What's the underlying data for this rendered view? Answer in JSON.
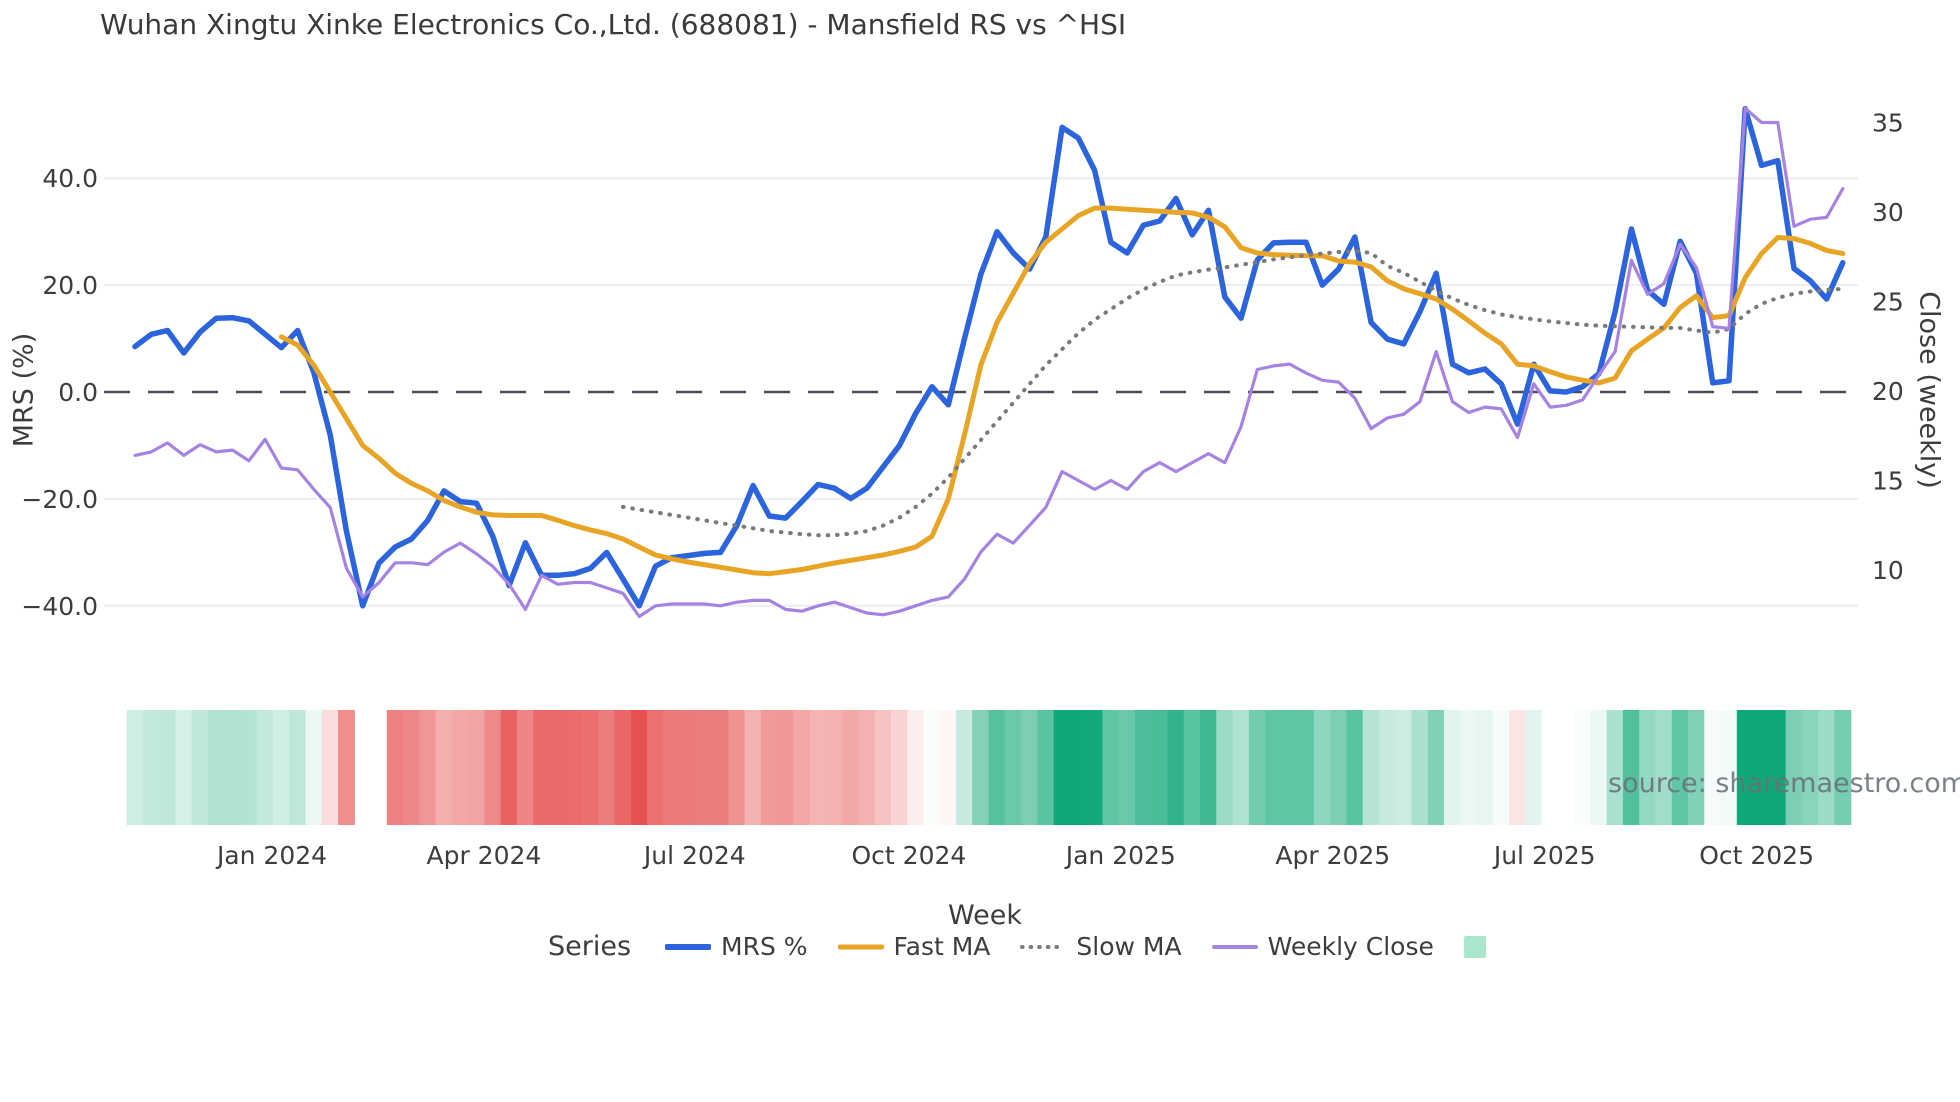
{
  "title": "Wuhan Xingtu Xinke Electronics Co.,Ltd. (688081) - Mansfield RS vs ^HSI",
  "watermark": "source: sharemaestro.com",
  "chart_data": {
    "type": "line",
    "x_unit": "week",
    "n_weeks": 106,
    "grid": true,
    "x_axis": {
      "title": "Week",
      "ticks": [
        {
          "label": "Jan 2024",
          "week": 8.42
        },
        {
          "label": "Apr 2024",
          "week": 21.45
        },
        {
          "label": "Jul 2024",
          "week": 34.42
        },
        {
          "label": "Oct 2024",
          "week": 47.58
        },
        {
          "label": "Jan 2025",
          "week": 60.61
        },
        {
          "label": "Apr 2025",
          "week": 73.64
        },
        {
          "label": "Jul 2025",
          "week": 86.67
        },
        {
          "label": "Oct 2025",
          "week": 99.7
        }
      ]
    },
    "left_axis": {
      "title": "MRS (%)",
      "range": [
        -44,
        62
      ],
      "zero_line": 0,
      "ticks": [
        {
          "label": "40.0",
          "value": 40
        },
        {
          "label": "20.0",
          "value": 20
        },
        {
          "label": "0.0",
          "value": 0
        },
        {
          "label": "−20.0",
          "value": -20
        },
        {
          "label": "−40.0",
          "value": -40
        }
      ]
    },
    "right_axis": {
      "title": "Close (weekly)",
      "range": [
        7,
        38.5
      ],
      "ticks": [
        {
          "label": "35",
          "value": 35
        },
        {
          "label": "30",
          "value": 30
        },
        {
          "label": "25",
          "value": 25
        },
        {
          "label": "20",
          "value": 20
        },
        {
          "label": "15",
          "value": 15
        },
        {
          "label": "10",
          "value": 10
        }
      ]
    },
    "legend": {
      "title": "Series",
      "items": [
        {
          "label": "MRS %",
          "type": "line",
          "color": "#2b64dd",
          "thick": 6
        },
        {
          "label": "Fast MA",
          "type": "line",
          "color": "#e8a425",
          "thick": 5
        },
        {
          "label": "Slow MA",
          "type": "dotted",
          "color": "#7a7a7a",
          "thick": 4
        },
        {
          "label": "Weekly Close",
          "type": "line",
          "color": "#a783e1",
          "thick": 4
        },
        {
          "label": "",
          "type": "square",
          "color": "#a9e6cc",
          "thick": 0
        }
      ]
    },
    "heat_strip": {
      "based_on": "MRS %",
      "positive_color": "#10a878",
      "negative_color": "#e54848",
      "max_abs": 42,
      "gap_weeks": [
        14,
        15
      ]
    },
    "series": [
      {
        "name": "MRS %",
        "axis": "left",
        "color": "#2b64dd",
        "style": "solid",
        "width": 5.5,
        "values": [
          8.5,
          10.8,
          11.5,
          7.3,
          11.2,
          13.8,
          13.9,
          13.3,
          10.8,
          8.3,
          11.5,
          3.6,
          -8.0,
          -26.0,
          -40.0,
          -32.0,
          -29.0,
          -27.5,
          -24.0,
          -18.5,
          -20.5,
          -20.8,
          -27.0,
          -36.2,
          -28.2,
          -34.3,
          -34.3,
          -34.0,
          -33.0,
          -30.0,
          -35.0,
          -40.0,
          -32.6,
          -31.0,
          -30.6,
          -30.2,
          -30.0,
          -25.0,
          -17.5,
          -23.2,
          -23.6,
          -20.5,
          -17.3,
          -18.0,
          -19.9,
          -18.0,
          -14.0,
          -10.0,
          -4.0,
          1.0,
          -2.4,
          10.0,
          22.0,
          30.0,
          26.0,
          23.0,
          29.0,
          49.5,
          47.5,
          41.5,
          28.0,
          26.0,
          31.2,
          32.0,
          36.2,
          29.4,
          34.0,
          17.8,
          13.8,
          24.7,
          27.9,
          28.0,
          28.0,
          20.0,
          23.0,
          29.0,
          13.0,
          9.9,
          9.0,
          15.0,
          22.2,
          5.2,
          3.6,
          4.3,
          1.5,
          -6.0,
          5.2,
          0.2,
          0.0,
          1.0,
          3.4,
          15.0,
          30.5,
          19.0,
          16.4,
          28.2,
          22.2,
          1.7,
          2.1,
          53.0,
          42.4,
          43.3,
          23.1,
          20.8,
          17.4,
          24.2
        ]
      },
      {
        "name": "Fast MA",
        "axis": "left",
        "color": "#e8a425",
        "style": "solid",
        "width": 5,
        "values": [
          null,
          null,
          null,
          null,
          null,
          null,
          null,
          null,
          null,
          10.3,
          8.8,
          5.0,
          0.0,
          -5.0,
          -10.0,
          -12.4,
          -15.2,
          -17.1,
          -18.5,
          -20.3,
          -21.5,
          -22.5,
          -23.0,
          -23.1,
          -23.1,
          -23.1,
          -24.0,
          -25.0,
          -25.8,
          -26.5,
          -27.5,
          -29.0,
          -30.5,
          -31.2,
          -31.8,
          -32.3,
          -32.8,
          -33.3,
          -33.8,
          -34.0,
          -33.6,
          -33.2,
          -32.6,
          -32.0,
          -31.5,
          -31.0,
          -30.5,
          -29.8,
          -29.0,
          -27.0,
          -20.0,
          -8.0,
          5.0,
          13.0,
          18.5,
          24.0,
          28.0,
          30.5,
          33.0,
          34.4,
          34.4,
          34.2,
          34.0,
          33.8,
          33.6,
          33.5,
          32.7,
          30.9,
          27.0,
          26.0,
          25.7,
          25.6,
          25.5,
          25.5,
          24.5,
          24.3,
          23.4,
          20.8,
          19.3,
          18.4,
          17.4,
          15.5,
          13.3,
          11.0,
          9.0,
          5.2,
          4.9,
          3.8,
          2.8,
          2.2,
          1.7,
          2.6,
          7.7,
          9.9,
          12.0,
          15.8,
          18.0,
          13.9,
          14.3,
          21.4,
          25.9,
          28.9,
          28.7,
          27.8,
          26.5,
          25.9
        ]
      },
      {
        "name": "Slow MA",
        "axis": "left",
        "color": "#7a7a7a",
        "style": "dotted",
        "width": 4,
        "values": [
          null,
          null,
          null,
          null,
          null,
          null,
          null,
          null,
          null,
          null,
          null,
          null,
          null,
          null,
          null,
          null,
          null,
          null,
          null,
          null,
          null,
          null,
          null,
          null,
          null,
          null,
          null,
          null,
          null,
          null,
          -21.5,
          -22.0,
          -22.5,
          -23.0,
          -23.5,
          -24.0,
          -24.5,
          -25.0,
          -25.5,
          -26.0,
          -26.3,
          -26.6,
          -26.8,
          -26.8,
          -26.5,
          -26.0,
          -25.0,
          -23.5,
          -21.5,
          -19.0,
          -16.0,
          -12.5,
          -9.0,
          -5.5,
          -2.0,
          1.5,
          5.0,
          8.0,
          11.0,
          13.5,
          15.5,
          17.5,
          19.2,
          20.6,
          21.8,
          22.4,
          22.9,
          23.3,
          23.8,
          24.3,
          24.8,
          25.2,
          25.6,
          25.9,
          26.2,
          26.4,
          26.0,
          23.6,
          22.3,
          20.6,
          19.0,
          17.5,
          16.3,
          15.3,
          14.5,
          14.0,
          13.6,
          13.2,
          12.9,
          12.6,
          12.4,
          12.3,
          12.2,
          12.1,
          12.0,
          12.0,
          11.5,
          11.1,
          11.8,
          14.6,
          16.5,
          17.6,
          18.4,
          18.8,
          19.1,
          19.3
        ]
      },
      {
        "name": "Weekly Close",
        "axis": "right",
        "color": "#a783e1",
        "style": "solid",
        "width": 3.2,
        "values": [
          16.4,
          16.6,
          17.1,
          16.4,
          17.0,
          16.6,
          16.7,
          16.1,
          17.3,
          15.7,
          15.6,
          14.5,
          13.5,
          10.1,
          8.5,
          9.3,
          10.4,
          10.4,
          10.3,
          11.0,
          11.5,
          10.9,
          10.2,
          9.2,
          7.8,
          9.7,
          9.2,
          9.3,
          9.3,
          9.0,
          8.7,
          7.4,
          8.0,
          8.1,
          8.1,
          8.1,
          8.0,
          8.2,
          8.3,
          8.3,
          7.8,
          7.7,
          8.0,
          8.2,
          7.9,
          7.6,
          7.5,
          7.7,
          8.0,
          8.3,
          8.5,
          9.5,
          11.0,
          12.0,
          11.5,
          12.5,
          13.5,
          15.5,
          15.0,
          14.5,
          15.0,
          14.5,
          15.5,
          16.0,
          15.5,
          16.0,
          16.5,
          16.0,
          18.0,
          21.2,
          21.4,
          21.5,
          21.0,
          20.6,
          20.5,
          19.6,
          17.9,
          18.5,
          18.7,
          19.4,
          22.2,
          19.4,
          18.8,
          19.1,
          19.0,
          17.4,
          20.4,
          19.1,
          19.2,
          19.5,
          20.9,
          22.2,
          27.3,
          25.4,
          26.0,
          28.2,
          26.9,
          23.6,
          23.5,
          35.8,
          35.0,
          35.0,
          29.2,
          29.6,
          29.7,
          31.3
        ]
      }
    ]
  }
}
